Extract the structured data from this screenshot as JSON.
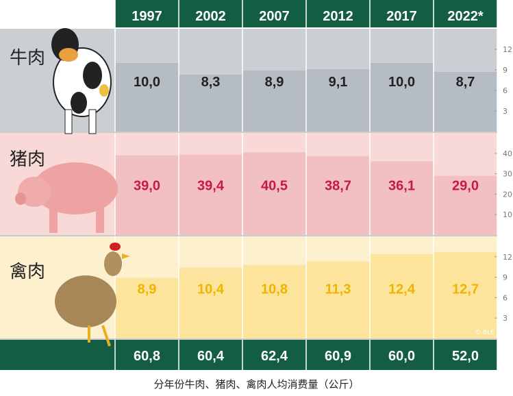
{
  "chart_data": {
    "type": "bar",
    "categories": [
      "1997",
      "2002",
      "2007",
      "2012",
      "2017",
      "2022*"
    ],
    "series": [
      {
        "name": "牛肉",
        "values": [
          10.0,
          8.3,
          8.9,
          9.1,
          10.0,
          8.7
        ],
        "labels": [
          "10,0",
          "8,3",
          "8,9",
          "9,1",
          "10,0",
          "8,7"
        ],
        "ticks": [
          "3",
          "6",
          "9",
          "12"
        ],
        "ylim": [
          0,
          15
        ],
        "color": "#b5bcc3",
        "bg": "#c9cfd3",
        "text": "#222222"
      },
      {
        "name": "猪肉",
        "values": [
          39.0,
          39.4,
          40.5,
          38.7,
          36.1,
          29.0
        ],
        "labels": [
          "39,0",
          "39,4",
          "40,5",
          "38,7",
          "36,1",
          "29,0"
        ],
        "ticks": [
          "10",
          "20",
          "30",
          "40"
        ],
        "ylim": [
          0,
          50
        ],
        "color": "#f2c0c0",
        "bg": "#f8d9d7",
        "text": "#c8184a"
      },
      {
        "name": "禽肉",
        "values": [
          8.9,
          10.4,
          10.8,
          11.3,
          12.4,
          12.7
        ],
        "labels": [
          "8,9",
          "10,4",
          "10,8",
          "11,3",
          "12,4",
          "12,7"
        ],
        "ticks": [
          "3",
          "6",
          "9",
          "12"
        ],
        "ylim": [
          0,
          15
        ],
        "color": "#fde49c",
        "bg": "#fdf0cf",
        "text": "#f0b400"
      }
    ],
    "totals": [
      "60,8",
      "60,4",
      "62,4",
      "60,9",
      "60,0",
      "52,0"
    ],
    "credit": "© BLE",
    "header_color": "#135e43"
  },
  "caption": "分年份牛肉、猪肉、禽肉人均消费量（公斤）"
}
